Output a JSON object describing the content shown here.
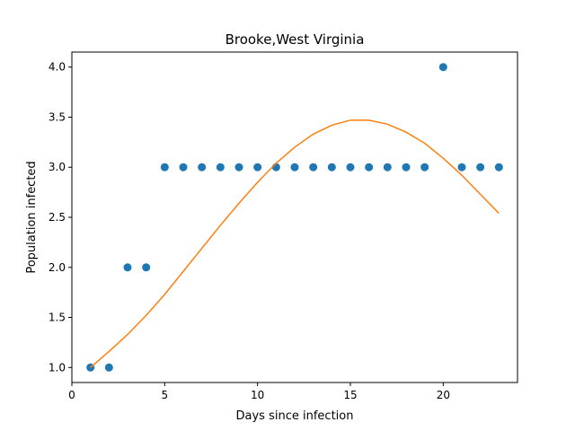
{
  "chart_data": {
    "type": "scatter",
    "title": "Brooke,West Virginia",
    "xlabel": "Days since infection",
    "ylabel": "Population infected",
    "xlim": [
      0,
      24
    ],
    "ylim": [
      0.85,
      4.15
    ],
    "xticks": [
      0,
      5,
      10,
      15,
      20
    ],
    "yticks": [
      1.0,
      1.5,
      2.0,
      2.5,
      3.0,
      3.5,
      4.0
    ],
    "xtick_labels": [
      "0",
      "5",
      "10",
      "15",
      "20"
    ],
    "ytick_labels": [
      "1.0",
      "1.5",
      "2.0",
      "2.5",
      "3.0",
      "3.5",
      "4.0"
    ],
    "grid": false,
    "series": [
      {
        "kind": "scatter",
        "color": "#1f77b4",
        "x": [
          1,
          2,
          3,
          4,
          5,
          6,
          7,
          8,
          9,
          10,
          11,
          12,
          13,
          14,
          15,
          16,
          17,
          18,
          19,
          20,
          21,
          22,
          23
        ],
        "y": [
          1,
          1,
          2,
          2,
          3,
          3,
          3,
          3,
          3,
          3,
          3,
          3,
          3,
          3,
          3,
          3,
          3,
          3,
          3,
          4,
          3,
          3,
          3
        ]
      },
      {
        "kind": "line",
        "color": "#ff7f0e",
        "x": [
          1,
          2,
          3,
          4,
          5,
          6,
          7,
          8,
          9,
          10,
          11,
          12,
          13,
          14,
          15,
          16,
          17,
          18,
          19,
          20,
          21,
          22,
          23
        ],
        "y": [
          1.0,
          1.16,
          1.33,
          1.52,
          1.73,
          1.96,
          2.19,
          2.42,
          2.64,
          2.85,
          3.04,
          3.2,
          3.33,
          3.42,
          3.47,
          3.47,
          3.43,
          3.35,
          3.24,
          3.09,
          2.92,
          2.73,
          2.54
        ]
      }
    ]
  }
}
